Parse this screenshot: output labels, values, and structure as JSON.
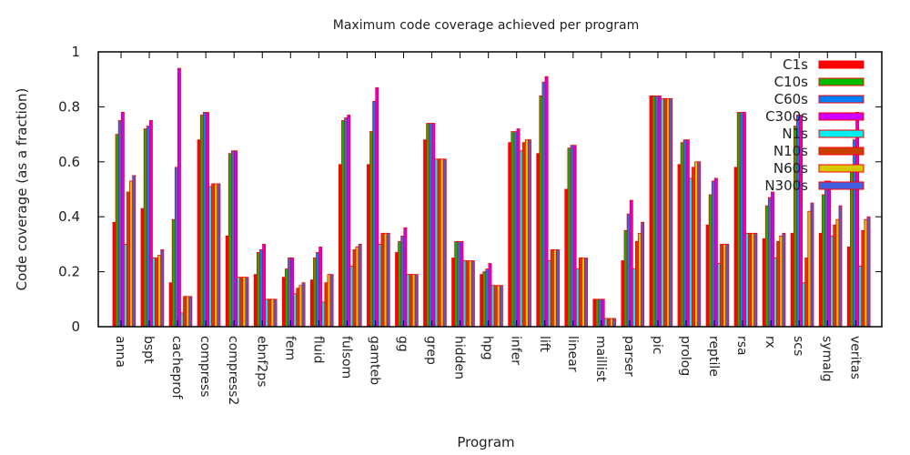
{
  "chart_data": {
    "type": "bar",
    "title": "Maximum code coverage achieved per program",
    "xlabel": "Program",
    "ylabel": "Code coverage (as a fraction)",
    "ylim": [
      0,
      1
    ],
    "yticks": [
      "0",
      "0.2",
      "0.4",
      "0.6",
      "0.8",
      "1"
    ],
    "ytick_values": [
      0,
      0.2,
      0.4,
      0.6,
      0.8,
      1
    ],
    "grid": false,
    "legend_position": "top-right",
    "categories": [
      "anna",
      "bspt",
      "cacheprof",
      "compress",
      "compress2",
      "ebnf2ps",
      "fem",
      "fluid",
      "fulsom",
      "gamteb",
      "gg",
      "grep",
      "hidden",
      "hpg",
      "infer",
      "lift",
      "linear",
      "maillist",
      "parser",
      "pic",
      "prolog",
      "reptile",
      "rsa",
      "rx",
      "scs",
      "symalg",
      "veritas"
    ],
    "series": [
      {
        "name": "C1s",
        "color": "#ff0000",
        "values": [
          0.38,
          0.43,
          0.16,
          0.68,
          0.33,
          0.19,
          0.18,
          0.17,
          0.59,
          0.59,
          0.27,
          0.68,
          0.25,
          0.19,
          0.67,
          0.63,
          0.5,
          0.1,
          0.24,
          0.84,
          0.59,
          0.37,
          0.58,
          0.32,
          0.34,
          0.34,
          0.29
        ]
      },
      {
        "name": "C10s",
        "color": "#00bb00",
        "values": [
          0.7,
          0.72,
          0.39,
          0.77,
          0.63,
          0.27,
          0.21,
          0.25,
          0.75,
          0.71,
          0.31,
          0.74,
          0.31,
          0.2,
          0.71,
          0.84,
          0.65,
          0.1,
          0.35,
          0.84,
          0.67,
          0.48,
          0.78,
          0.44,
          0.73,
          0.48,
          0.58
        ]
      },
      {
        "name": "C60s",
        "color": "#0080ff",
        "values": [
          0.75,
          0.73,
          0.58,
          0.78,
          0.64,
          0.28,
          0.25,
          0.27,
          0.76,
          0.82,
          0.33,
          0.74,
          0.31,
          0.21,
          0.71,
          0.89,
          0.66,
          0.1,
          0.41,
          0.84,
          0.68,
          0.53,
          0.78,
          0.47,
          0.77,
          0.53,
          0.68
        ]
      },
      {
        "name": "C300s",
        "color": "#cc00ff",
        "values": [
          0.78,
          0.75,
          0.94,
          0.78,
          0.64,
          0.3,
          0.25,
          0.29,
          0.77,
          0.87,
          0.36,
          0.74,
          0.31,
          0.23,
          0.72,
          0.91,
          0.66,
          0.1,
          0.46,
          0.84,
          0.68,
          0.54,
          0.78,
          0.49,
          0.77,
          0.53,
          0.78
        ]
      },
      {
        "name": "N1s",
        "color": "#00eeee",
        "values": [
          0.3,
          0.25,
          0.05,
          0.51,
          0.18,
          0.1,
          0.12,
          0.09,
          0.22,
          0.3,
          0.19,
          0.61,
          0.24,
          0.15,
          0.64,
          0.24,
          0.21,
          0.03,
          0.21,
          0.83,
          0.54,
          0.23,
          0.34,
          0.25,
          0.16,
          0.33,
          0.22
        ]
      },
      {
        "name": "N10s",
        "color": "#c84000",
        "values": [
          0.49,
          0.25,
          0.11,
          0.52,
          0.18,
          0.1,
          0.14,
          0.16,
          0.28,
          0.34,
          0.19,
          0.61,
          0.24,
          0.15,
          0.67,
          0.28,
          0.25,
          0.03,
          0.31,
          0.83,
          0.58,
          0.3,
          0.34,
          0.31,
          0.25,
          0.37,
          0.35
        ]
      },
      {
        "name": "N60s",
        "color": "#d4c800",
        "values": [
          0.53,
          0.26,
          0.11,
          0.52,
          0.18,
          0.1,
          0.15,
          0.19,
          0.29,
          0.34,
          0.19,
          0.61,
          0.24,
          0.15,
          0.68,
          0.28,
          0.25,
          0.03,
          0.34,
          0.83,
          0.6,
          0.3,
          0.34,
          0.33,
          0.42,
          0.39,
          0.39
        ]
      },
      {
        "name": "N300s",
        "color": "#4060e0",
        "values": [
          0.55,
          0.28,
          0.11,
          0.52,
          0.18,
          0.1,
          0.16,
          0.19,
          0.3,
          0.34,
          0.19,
          0.61,
          0.24,
          0.15,
          0.68,
          0.28,
          0.25,
          0.03,
          0.38,
          0.83,
          0.6,
          0.3,
          0.34,
          0.34,
          0.45,
          0.44,
          0.4
        ]
      }
    ]
  }
}
